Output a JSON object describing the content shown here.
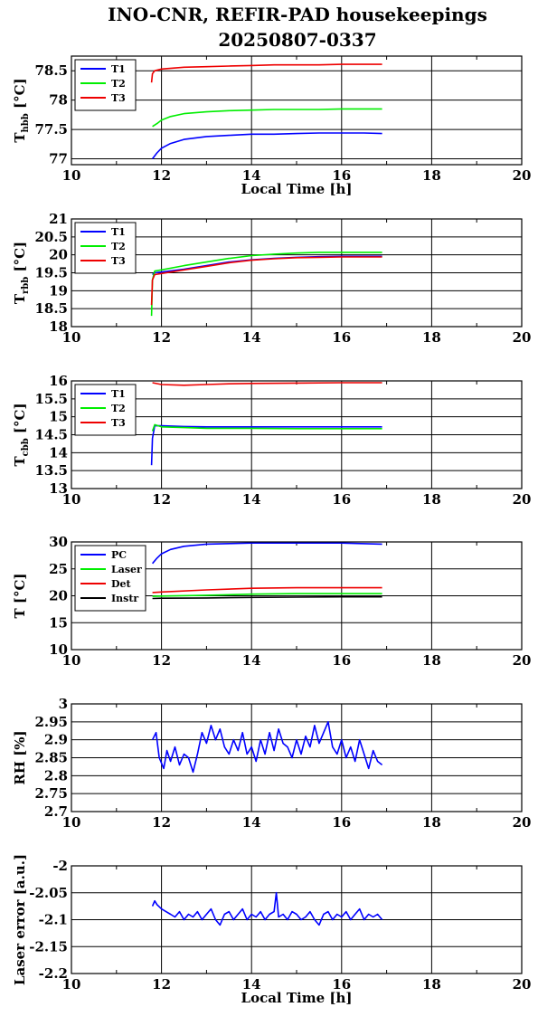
{
  "figure": {
    "title_line1": "INO-CNR, REFIR-PAD housekeepings",
    "title_line2": "20250807-0337"
  },
  "chart_data": [
    {
      "type": "line",
      "ylabel_main": "T",
      "ylabel_sub": "hbb",
      "ylabel_unit": " [°C]",
      "xlabel": "Local Time [h]",
      "xlim": [
        10,
        20
      ],
      "ylim": [
        76.9,
        78.75
      ],
      "xticks": [
        10,
        12,
        14,
        16,
        18,
        20
      ],
      "yticks": [
        77,
        77.5,
        78,
        78.5
      ],
      "series": [
        {
          "name": "T1",
          "color": "#0000ff",
          "x": [
            11.8,
            11.9,
            12.0,
            12.2,
            12.5,
            13.0,
            13.5,
            14.0,
            14.5,
            15.0,
            15.5,
            16.0,
            16.5,
            16.9
          ],
          "y": [
            77.0,
            77.1,
            77.18,
            77.26,
            77.33,
            77.38,
            77.4,
            77.42,
            77.42,
            77.43,
            77.44,
            77.44,
            77.44,
            77.43
          ]
        },
        {
          "name": "T2",
          "color": "#00ee00",
          "x": [
            11.8,
            11.9,
            12.0,
            12.2,
            12.5,
            13.0,
            13.5,
            14.0,
            14.5,
            15.0,
            15.5,
            16.0,
            16.5,
            16.9
          ],
          "y": [
            77.55,
            77.6,
            77.66,
            77.72,
            77.77,
            77.8,
            77.82,
            77.83,
            77.84,
            77.84,
            77.84,
            77.85,
            77.85,
            77.85
          ]
        },
        {
          "name": "T3",
          "color": "#ee0000",
          "x": [
            11.78,
            11.8,
            11.85,
            12.0,
            12.5,
            13.0,
            13.5,
            14.0,
            14.5,
            15.0,
            15.5,
            16.0,
            16.5,
            16.9
          ],
          "y": [
            78.3,
            78.45,
            78.5,
            78.53,
            78.56,
            78.57,
            78.58,
            78.59,
            78.6,
            78.6,
            78.6,
            78.61,
            78.61,
            78.61
          ]
        }
      ]
    },
    {
      "type": "line",
      "ylabel_main": "T",
      "ylabel_sub": "rbb",
      "ylabel_unit": " [°C]",
      "xlabel": "",
      "xlim": [
        10,
        20
      ],
      "ylim": [
        18,
        21
      ],
      "xticks": [
        10,
        12,
        14,
        16,
        18,
        20
      ],
      "yticks": [
        18,
        18.5,
        19,
        19.5,
        20,
        20.5,
        21
      ],
      "series": [
        {
          "name": "T1",
          "color": "#0000ff",
          "x": [
            11.8,
            11.85,
            12.0,
            12.5,
            13.0,
            13.5,
            14.0,
            14.5,
            15.0,
            15.5,
            16.0,
            16.5,
            16.9
          ],
          "y": [
            19.45,
            19.5,
            19.52,
            19.6,
            19.7,
            19.8,
            19.86,
            19.9,
            19.93,
            19.95,
            19.96,
            19.96,
            19.96
          ]
        },
        {
          "name": "T2",
          "color": "#00ee00",
          "x": [
            11.78,
            11.8,
            11.85,
            12.0,
            12.5,
            13.0,
            13.5,
            14.0,
            14.5,
            15.0,
            15.5,
            16.0,
            16.5,
            16.9
          ],
          "y": [
            18.3,
            19.3,
            19.55,
            19.58,
            19.7,
            19.8,
            19.9,
            19.98,
            20.02,
            20.05,
            20.07,
            20.07,
            20.07,
            20.07
          ]
        },
        {
          "name": "T3",
          "color": "#ee0000",
          "x": [
            11.78,
            11.8,
            11.85,
            12.0,
            12.5,
            13.0,
            13.5,
            14.0,
            14.5,
            15.0,
            15.5,
            16.0,
            16.5,
            16.9
          ],
          "y": [
            18.6,
            19.3,
            19.45,
            19.48,
            19.58,
            19.68,
            19.78,
            19.85,
            19.89,
            19.92,
            19.93,
            19.94,
            19.94,
            19.94
          ]
        }
      ]
    },
    {
      "type": "line",
      "ylabel_main": "T",
      "ylabel_sub": "cbb",
      "ylabel_unit": " [°C]",
      "xlabel": "",
      "xlim": [
        10,
        20
      ],
      "ylim": [
        13,
        16
      ],
      "xticks": [
        10,
        12,
        14,
        16,
        18,
        20
      ],
      "yticks": [
        13,
        13.5,
        14,
        14.5,
        15,
        15.5,
        16
      ],
      "series": [
        {
          "name": "T1",
          "color": "#0000ff",
          "x": [
            11.78,
            11.8,
            11.85,
            12.0,
            12.5,
            13.0,
            14.0,
            15.0,
            16.0,
            16.9
          ],
          "y": [
            13.65,
            14.4,
            14.75,
            14.75,
            14.73,
            14.72,
            14.72,
            14.72,
            14.72,
            14.72
          ]
        },
        {
          "name": "T2",
          "color": "#00ee00",
          "x": [
            11.8,
            11.85,
            12.0,
            12.5,
            13.0,
            14.0,
            15.0,
            16.0,
            16.9
          ],
          "y": [
            14.6,
            14.78,
            14.72,
            14.7,
            14.68,
            14.68,
            14.67,
            14.67,
            14.67
          ]
        },
        {
          "name": "T3",
          "color": "#ee0000",
          "x": [
            11.8,
            12.0,
            12.5,
            13.0,
            13.5,
            14.0,
            15.0,
            16.0,
            16.9
          ],
          "y": [
            15.95,
            15.9,
            15.88,
            15.9,
            15.92,
            15.93,
            15.94,
            15.95,
            15.95
          ]
        }
      ]
    },
    {
      "type": "line",
      "ylabel_main": "T [°C]",
      "ylabel_sub": "",
      "ylabel_unit": "",
      "xlabel": "",
      "xlim": [
        10,
        20
      ],
      "ylim": [
        10,
        30
      ],
      "xticks": [
        10,
        12,
        14,
        16,
        18,
        20
      ],
      "yticks": [
        10,
        15,
        20,
        25,
        30
      ],
      "series": [
        {
          "name": "PC",
          "color": "#0000ff",
          "x": [
            11.8,
            11.9,
            12.0,
            12.2,
            12.5,
            13.0,
            13.5,
            14.0,
            15.0,
            16.0,
            16.9
          ],
          "y": [
            26.0,
            27.0,
            27.8,
            28.6,
            29.2,
            29.6,
            29.7,
            29.8,
            29.8,
            29.8,
            29.6
          ]
        },
        {
          "name": "Laser",
          "color": "#00ee00",
          "x": [
            11.8,
            12.0,
            13.0,
            14.0,
            15.0,
            16.0,
            16.9
          ],
          "y": [
            19.9,
            19.95,
            20.1,
            20.3,
            20.4,
            20.4,
            20.4
          ]
        },
        {
          "name": "Det",
          "color": "#ee0000",
          "x": [
            11.8,
            12.0,
            13.0,
            14.0,
            15.0,
            16.0,
            16.9
          ],
          "y": [
            20.6,
            20.7,
            21.1,
            21.4,
            21.5,
            21.5,
            21.5
          ]
        },
        {
          "name": "Instr",
          "color": "#000000",
          "x": [
            11.8,
            12.0,
            13.0,
            14.0,
            15.0,
            16.0,
            16.9
          ],
          "y": [
            19.5,
            19.55,
            19.6,
            19.7,
            19.75,
            19.8,
            19.8
          ]
        }
      ]
    },
    {
      "type": "line",
      "ylabel_main": "RH [%]",
      "ylabel_sub": "",
      "ylabel_unit": "",
      "xlabel": "",
      "xlim": [
        10,
        20
      ],
      "ylim": [
        2.7,
        3.0
      ],
      "xticks": [
        10,
        12,
        14,
        16,
        18,
        20
      ],
      "yticks": [
        2.7,
        2.75,
        2.8,
        2.85,
        2.9,
        2.95,
        3
      ],
      "series": [
        {
          "name": "",
          "color": "#0000ff",
          "x": [
            11.8,
            11.88,
            11.95,
            12.05,
            12.12,
            12.2,
            12.3,
            12.4,
            12.5,
            12.6,
            12.7,
            12.8,
            12.9,
            13.0,
            13.1,
            13.2,
            13.3,
            13.4,
            13.5,
            13.6,
            13.7,
            13.8,
            13.9,
            14.0,
            14.1,
            14.2,
            14.3,
            14.4,
            14.5,
            14.6,
            14.7,
            14.8,
            14.9,
            15.0,
            15.1,
            15.2,
            15.3,
            15.4,
            15.5,
            15.6,
            15.7,
            15.8,
            15.9,
            16.0,
            16.1,
            16.2,
            16.3,
            16.4,
            16.5,
            16.6,
            16.7,
            16.8,
            16.9
          ],
          "y": [
            2.9,
            2.92,
            2.85,
            2.82,
            2.87,
            2.84,
            2.88,
            2.83,
            2.86,
            2.85,
            2.81,
            2.86,
            2.92,
            2.89,
            2.94,
            2.9,
            2.93,
            2.88,
            2.86,
            2.9,
            2.87,
            2.92,
            2.86,
            2.88,
            2.84,
            2.9,
            2.86,
            2.92,
            2.87,
            2.93,
            2.89,
            2.88,
            2.85,
            2.9,
            2.86,
            2.91,
            2.88,
            2.94,
            2.89,
            2.92,
            2.95,
            2.88,
            2.86,
            2.9,
            2.85,
            2.88,
            2.84,
            2.9,
            2.86,
            2.82,
            2.87,
            2.84,
            2.83
          ]
        }
      ]
    },
    {
      "type": "line",
      "ylabel_main": "Laser error [a.u.]",
      "ylabel_sub": "",
      "ylabel_unit": "",
      "xlabel": "Local Time [h]",
      "xlim": [
        10,
        20
      ],
      "ylim": [
        -2.2,
        -2.0
      ],
      "xticks": [
        10,
        12,
        14,
        16,
        18,
        20
      ],
      "yticks": [
        -2.2,
        -2.15,
        -2.1,
        -2.05,
        -2
      ],
      "series": [
        {
          "name": "",
          "color": "#0000ff",
          "x": [
            11.8,
            11.85,
            11.9,
            12.0,
            12.1,
            12.2,
            12.3,
            12.4,
            12.5,
            12.6,
            12.7,
            12.8,
            12.9,
            13.0,
            13.1,
            13.2,
            13.3,
            13.4,
            13.5,
            13.6,
            13.7,
            13.8,
            13.9,
            14.0,
            14.1,
            14.2,
            14.3,
            14.4,
            14.5,
            14.55,
            14.6,
            14.7,
            14.8,
            14.9,
            15.0,
            15.1,
            15.2,
            15.3,
            15.4,
            15.5,
            15.6,
            15.7,
            15.8,
            15.9,
            16.0,
            16.1,
            16.2,
            16.3,
            16.4,
            16.5,
            16.6,
            16.7,
            16.8,
            16.9
          ],
          "y": [
            -2.075,
            -2.065,
            -2.072,
            -2.08,
            -2.085,
            -2.09,
            -2.095,
            -2.085,
            -2.1,
            -2.09,
            -2.095,
            -2.085,
            -2.1,
            -2.09,
            -2.08,
            -2.1,
            -2.11,
            -2.09,
            -2.085,
            -2.1,
            -2.09,
            -2.08,
            -2.1,
            -2.09,
            -2.095,
            -2.085,
            -2.1,
            -2.09,
            -2.085,
            -2.05,
            -2.095,
            -2.09,
            -2.1,
            -2.085,
            -2.09,
            -2.1,
            -2.095,
            -2.085,
            -2.1,
            -2.11,
            -2.09,
            -2.085,
            -2.1,
            -2.09,
            -2.095,
            -2.085,
            -2.1,
            -2.09,
            -2.08,
            -2.1,
            -2.09,
            -2.095,
            -2.09,
            -2.1
          ]
        }
      ]
    }
  ]
}
